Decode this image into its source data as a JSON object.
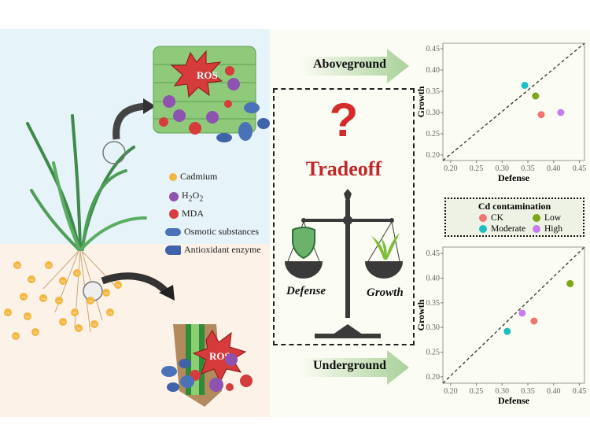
{
  "legend": {
    "items": [
      {
        "label": "Cadmium",
        "color": "#f4b63f"
      },
      {
        "label": "H2O2",
        "color": "#8e52b0"
      },
      {
        "label": "MDA",
        "color": "#d63c3c"
      },
      {
        "label": "Osmotic substances",
        "color": "#4a72b8"
      },
      {
        "label": "Antioxidant enzyme",
        "color": "#3f63a8"
      }
    ]
  },
  "ros_label": "ROS",
  "cd_label": "Cd",
  "arrows": {
    "above": "Aboveground",
    "under": "Underground"
  },
  "center": {
    "question": "?",
    "title": "Tradeoff",
    "left_pan": "Defense",
    "right_pan": "Growth"
  },
  "cd_legend": {
    "title": "Cd contamination",
    "items": [
      {
        "label": "CK",
        "color": "#f07470"
      },
      {
        "label": "Low",
        "color": "#7aa618"
      },
      {
        "label": "Moderate",
        "color": "#1dbfc3"
      },
      {
        "label": "High",
        "color": "#c77cf0"
      }
    ]
  },
  "chart_data": [
    {
      "type": "scatter",
      "panel": "Aboveground",
      "xlabel": "Defense",
      "ylabel": "Growth",
      "xlim": [
        0.185,
        0.46
      ],
      "ylim": [
        0.187,
        0.463
      ],
      "xticks": [
        "0.20",
        "0.25",
        "0.30",
        "0.35",
        "0.40",
        "0.45"
      ],
      "yticks": [
        "0.20",
        "0.25",
        "0.30",
        "0.35",
        "0.40",
        "0.45"
      ],
      "reference_line": "y = x (dashed)",
      "grid": false,
      "points": [
        {
          "group": "CK",
          "x": 0.376,
          "y": 0.295
        },
        {
          "group": "Low",
          "x": 0.365,
          "y": 0.339
        },
        {
          "group": "Moderate",
          "x": 0.344,
          "y": 0.364
        },
        {
          "group": "High",
          "x": 0.414,
          "y": 0.3
        }
      ]
    },
    {
      "type": "scatter",
      "panel": "Underground",
      "xlabel": "Defense",
      "ylabel": "Growth",
      "xlim": [
        0.185,
        0.46
      ],
      "ylim": [
        0.187,
        0.463
      ],
      "xticks": [
        "0.20",
        "0.25",
        "0.30",
        "0.35",
        "0.40",
        "0.45"
      ],
      "yticks": [
        "0.20",
        "0.25",
        "0.30",
        "0.35",
        "0.40",
        "0.45"
      ],
      "reference_line": "y = x (dashed)",
      "grid": false,
      "points": [
        {
          "group": "CK",
          "x": 0.362,
          "y": 0.313
        },
        {
          "group": "Low",
          "x": 0.432,
          "y": 0.389
        },
        {
          "group": "Moderate",
          "x": 0.31,
          "y": 0.292
        },
        {
          "group": "High",
          "x": 0.339,
          "y": 0.329
        }
      ]
    }
  ]
}
